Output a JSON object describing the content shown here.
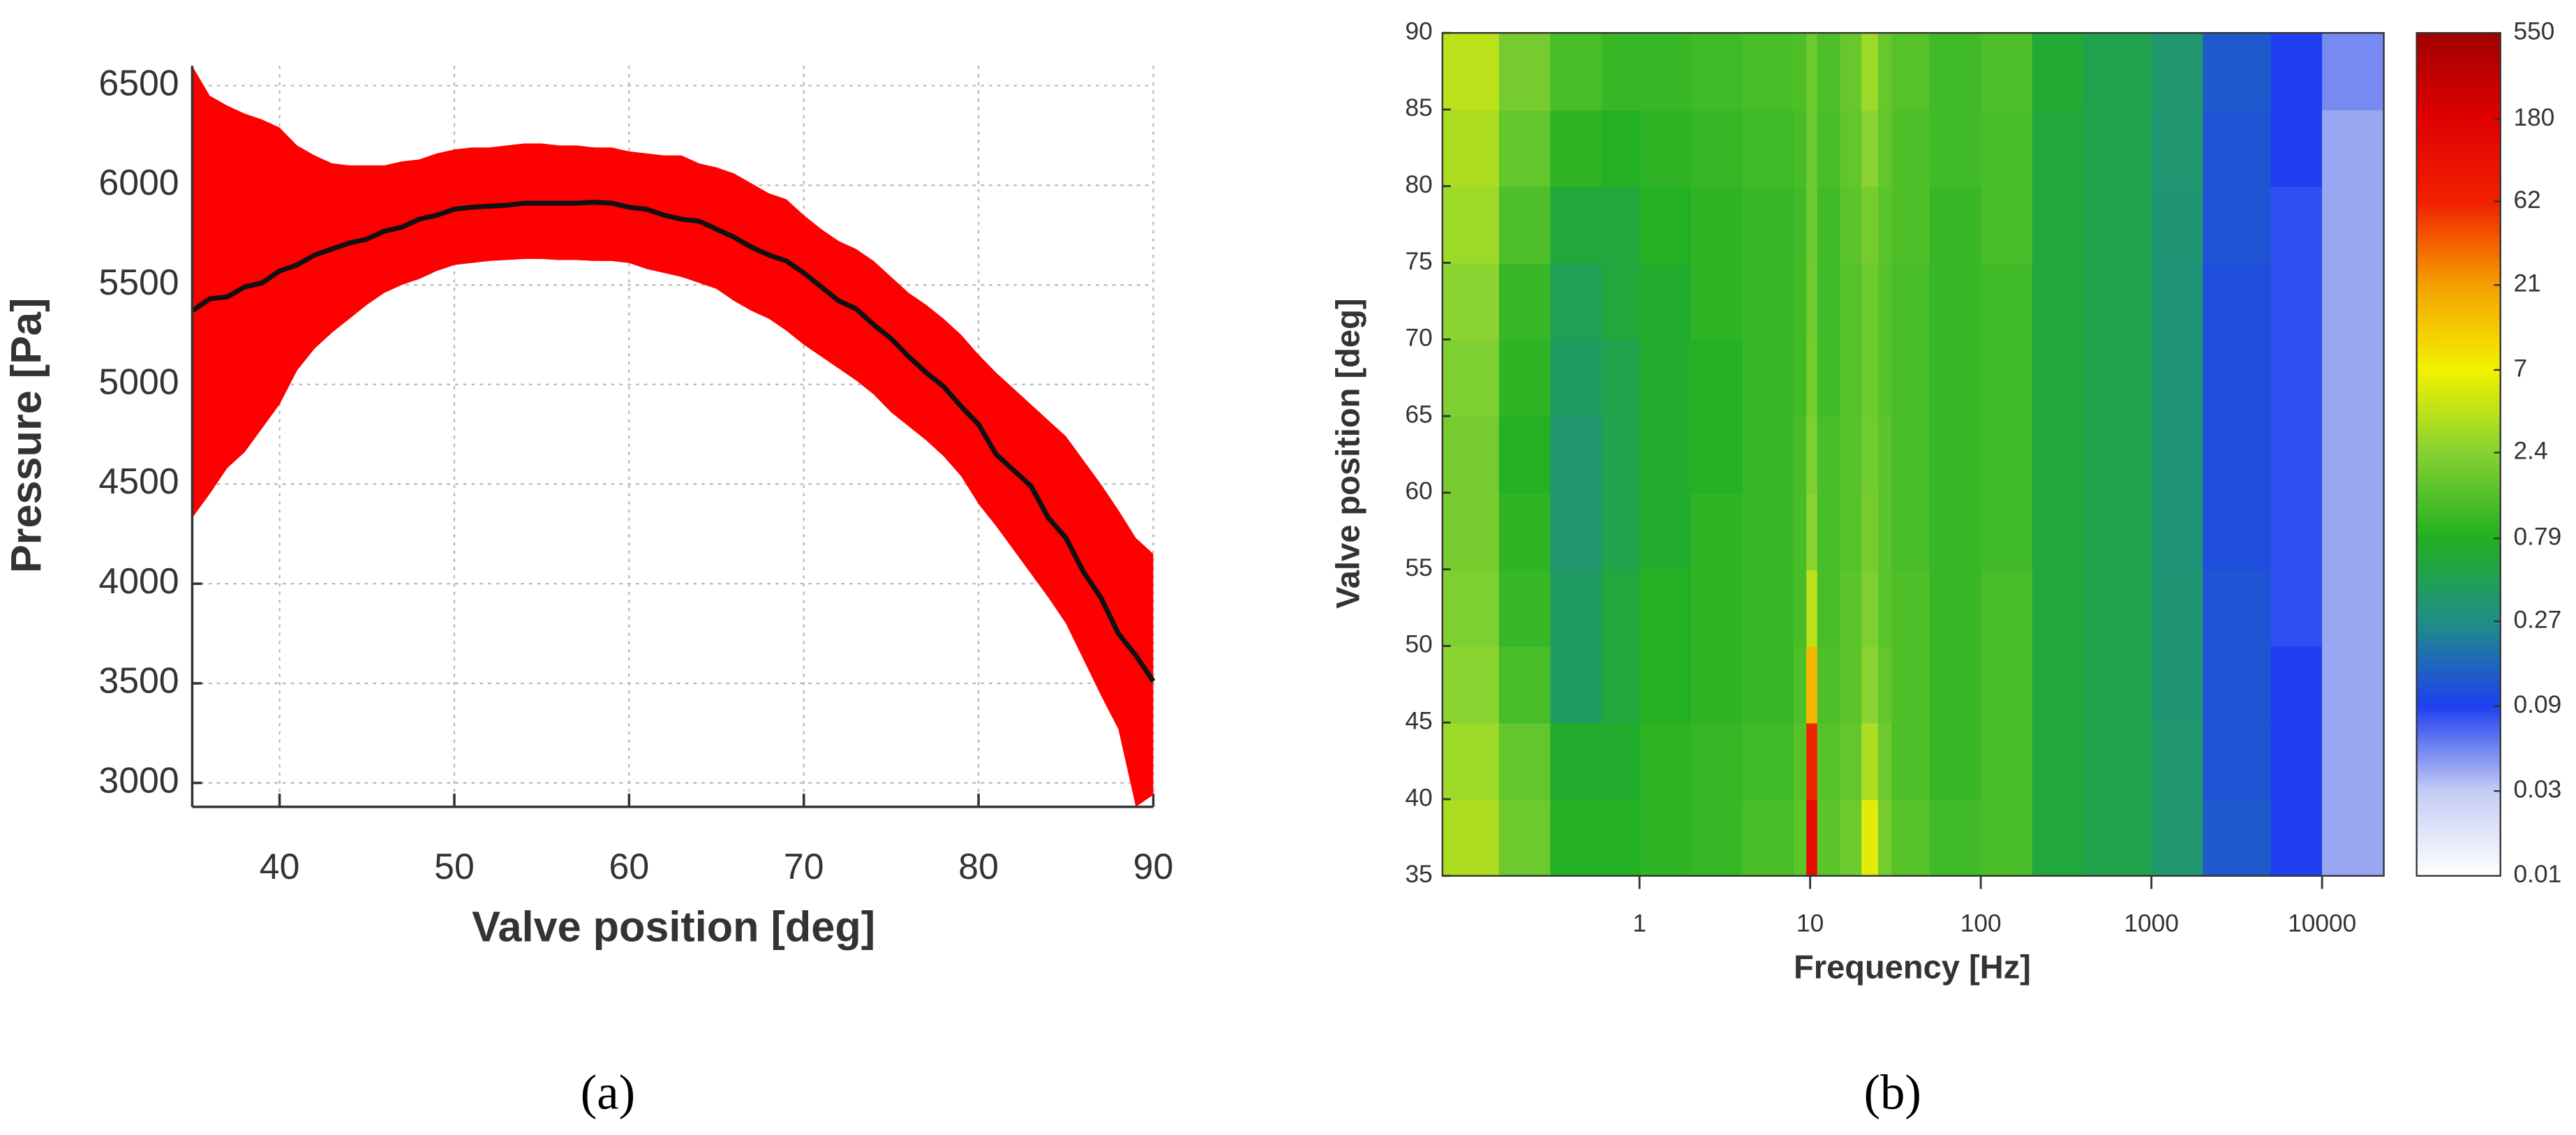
{
  "chart_data": [
    {
      "type": "area-line",
      "xlabel": "Valve position [deg]",
      "ylabel": "Pressure [Pa]",
      "panel_label": "(a)",
      "x": [
        35,
        36,
        37,
        38,
        39,
        40,
        41,
        42,
        43,
        44,
        45,
        46,
        47,
        48,
        49,
        50,
        51,
        52,
        53,
        54,
        55,
        56,
        57,
        58,
        59,
        60,
        61,
        62,
        63,
        64,
        65,
        66,
        67,
        68,
        69,
        70,
        71,
        72,
        73,
        74,
        75,
        76,
        77,
        78,
        79,
        80,
        81,
        82,
        83,
        84,
        85,
        86,
        87,
        88,
        89,
        90
      ],
      "values": [
        5370,
        5430,
        5440,
        5490,
        5510,
        5570,
        5600,
        5650,
        5680,
        5710,
        5730,
        5770,
        5790,
        5830,
        5850,
        5880,
        5890,
        5895,
        5900,
        5910,
        5910,
        5910,
        5910,
        5915,
        5910,
        5890,
        5880,
        5850,
        5830,
        5820,
        5780,
        5740,
        5690,
        5650,
        5620,
        5560,
        5490,
        5420,
        5380,
        5300,
        5230,
        5140,
        5060,
        4990,
        4890,
        4800,
        4650,
        4570,
        4490,
        4330,
        4230,
        4060,
        3930,
        3750,
        3640,
        3510
      ],
      "lower": [
        4330,
        4450,
        4580,
        4660,
        4780,
        4900,
        5070,
        5180,
        5260,
        5330,
        5400,
        5460,
        5500,
        5530,
        5570,
        5600,
        5610,
        5620,
        5625,
        5630,
        5630,
        5625,
        5625,
        5620,
        5620,
        5610,
        5580,
        5560,
        5540,
        5510,
        5480,
        5420,
        5370,
        5330,
        5270,
        5200,
        5140,
        5080,
        5020,
        4950,
        4860,
        4790,
        4720,
        4640,
        4540,
        4400,
        4290,
        4170,
        4050,
        3930,
        3800,
        3620,
        3440,
        3270,
        2880,
        2940
      ],
      "upper": [
        6600,
        6450,
        6400,
        6360,
        6330,
        6290,
        6200,
        6150,
        6110,
        6100,
        6100,
        6100,
        6120,
        6130,
        6160,
        6180,
        6190,
        6190,
        6200,
        6210,
        6210,
        6200,
        6200,
        6190,
        6190,
        6170,
        6160,
        6150,
        6150,
        6110,
        6090,
        6060,
        6010,
        5960,
        5930,
        5850,
        5780,
        5720,
        5680,
        5620,
        5540,
        5460,
        5400,
        5330,
        5250,
        5150,
        5060,
        4980,
        4900,
        4820,
        4740,
        4620,
        4500,
        4370,
        4230,
        4150
      ],
      "line_color": "#111111",
      "band_color": "#ff0000",
      "xlim": [
        35,
        90
      ],
      "xticks": [
        40,
        50,
        60,
        70,
        80,
        90
      ],
      "ylim": [
        2880,
        6600
      ],
      "yticks": [
        3000,
        3500,
        4000,
        4500,
        5000,
        5500,
        6000,
        6500
      ],
      "grid": true
    },
    {
      "type": "heatmap",
      "xlabel": "Frequency [Hz]",
      "ylabel": "Valve position [deg]",
      "panel_label": "(b)",
      "xscale": "log",
      "x": [
        0.07,
        0.15,
        0.3,
        0.6,
        1,
        2,
        4,
        8,
        9.5,
        11,
        15,
        20,
        25,
        30,
        50,
        100,
        200,
        400,
        1000,
        2000,
        5000,
        10000
      ],
      "y": [
        35,
        40,
        45,
        50,
        55,
        60,
        65,
        70,
        75,
        80,
        85
      ],
      "z": [
        [
          3.5,
          1.8,
          0.8,
          0.8,
          0.9,
          1.0,
          1.2,
          1.5,
          120,
          1.5,
          1.8,
          6,
          2,
          1.4,
          1.1,
          1.2,
          0.6,
          0.5,
          0.35,
          0.13,
          0.09,
          0.04
        ],
        [
          3,
          1.6,
          0.7,
          0.7,
          0.9,
          1.0,
          1.1,
          1.4,
          60,
          1.4,
          1.6,
          3.5,
          1.8,
          1.3,
          1.0,
          1.2,
          0.6,
          0.5,
          0.35,
          0.12,
          0.09,
          0.04
        ],
        [
          2.5,
          1.2,
          0.4,
          0.6,
          0.8,
          0.9,
          1.0,
          1.3,
          15,
          1.3,
          1.5,
          2.5,
          1.6,
          1.3,
          1.0,
          1.2,
          0.6,
          0.5,
          0.33,
          0.12,
          0.09,
          0.04
        ],
        [
          2.2,
          1.0,
          0.4,
          0.6,
          0.8,
          0.9,
          1.0,
          1.2,
          4,
          1.2,
          1.5,
          2.2,
          1.5,
          1.3,
          1.0,
          1.2,
          0.6,
          0.5,
          0.33,
          0.12,
          0.08,
          0.04
        ],
        [
          2,
          0.9,
          0.35,
          0.5,
          0.7,
          0.9,
          1.0,
          1.2,
          2.5,
          1.2,
          1.4,
          2,
          1.5,
          1.2,
          1.0,
          1.1,
          0.6,
          0.5,
          0.32,
          0.11,
          0.08,
          0.04
        ],
        [
          2,
          0.8,
          0.35,
          0.5,
          0.7,
          0.8,
          1.0,
          1.2,
          2.2,
          1.2,
          1.4,
          1.9,
          1.5,
          1.2,
          1.0,
          1.1,
          0.6,
          0.5,
          0.32,
          0.11,
          0.08,
          0.04
        ],
        [
          2.2,
          0.9,
          0.4,
          0.5,
          0.7,
          0.8,
          1.0,
          1.1,
          2,
          1.1,
          1.4,
          1.8,
          1.4,
          1.2,
          1.0,
          1.1,
          0.6,
          0.5,
          0.32,
          0.11,
          0.08,
          0.04
        ],
        [
          2.5,
          1.0,
          0.45,
          0.6,
          0.7,
          0.9,
          1.0,
          1.1,
          1.9,
          1.1,
          1.4,
          1.8,
          1.4,
          1.2,
          1.0,
          1.1,
          0.6,
          0.5,
          0.32,
          0.11,
          0.08,
          0.04
        ],
        [
          3,
          1.3,
          0.6,
          0.6,
          0.8,
          0.9,
          1.0,
          1.1,
          1.8,
          1.1,
          1.5,
          2,
          1.5,
          1.3,
          1.0,
          1.2,
          0.6,
          0.5,
          0.33,
          0.12,
          0.08,
          0.04
        ],
        [
          3.5,
          1.6,
          0.9,
          0.8,
          0.9,
          1.0,
          1.1,
          1.2,
          1.8,
          1.2,
          1.6,
          2.5,
          1.6,
          1.3,
          1.1,
          1.2,
          0.6,
          0.5,
          0.34,
          0.12,
          0.09,
          0.04
        ],
        [
          4,
          2,
          1.2,
          1.0,
          1.0,
          1.1,
          1.2,
          1.3,
          1.8,
          1.3,
          1.7,
          3,
          1.7,
          1.4,
          1.1,
          1.3,
          0.65,
          0.5,
          0.35,
          0.13,
          0.09,
          0.05
        ]
      ],
      "xlim": [
        0.07,
        23000
      ],
      "xticks": [
        1,
        10,
        100,
        1000,
        10000
      ],
      "ylim": [
        35,
        90
      ],
      "yticks": [
        35,
        40,
        45,
        50,
        55,
        60,
        65,
        70,
        75,
        80,
        85,
        90
      ],
      "colorbar": {
        "scale": "log",
        "ticks": [
          0.01,
          0.03,
          0.09,
          0.27,
          0.79,
          2.4,
          7,
          21,
          62,
          180,
          550
        ],
        "colors": [
          "#ffffff",
          "#c4ccf4",
          "#1f3ff0",
          "#1f8f86",
          "#22b022",
          "#86d232",
          "#f2f200",
          "#f4a000",
          "#f22000",
          "#e00000",
          "#a00000"
        ]
      }
    }
  ]
}
